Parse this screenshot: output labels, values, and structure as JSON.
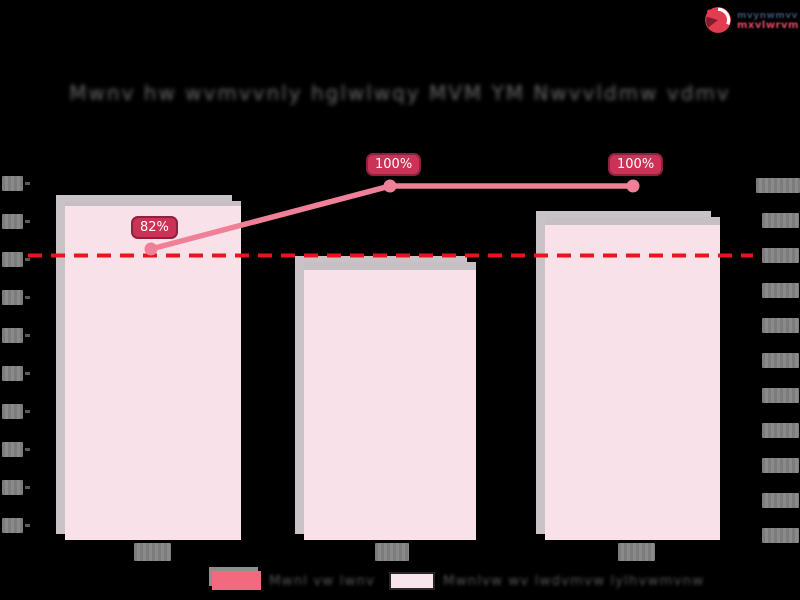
{
  "brand_logo": {
    "icon": "pie-circle-logo-icon",
    "redacted": true,
    "line1_placeholder": "mvynwmvv",
    "line2_placeholder": "mxvlwrvm"
  },
  "title": {
    "redacted": true,
    "placeholder": "Mwnv hw wvmvvnly hglwlwqy MVM YM Nwvvldmw vdmv"
  },
  "legend": {
    "redacted": true,
    "item1_placeholder": "Mwnl vw lwnv",
    "item2_placeholder": "Mwnlvw wv lwdvmvw lylhvwmvnw"
  },
  "chart_data": {
    "type": "combo_bar_line",
    "title": "[illegible - pixelated]",
    "categories": [
      "[illegible]",
      "[illegible]",
      "[illegible]"
    ],
    "series": [
      {
        "name": "[illegible legend 1]",
        "type": "line",
        "axis": "right",
        "unit": "%",
        "values": [
          82,
          100,
          100
        ]
      },
      {
        "name": "[illegible legend 2]",
        "type": "bar",
        "axis": "right",
        "unit": "%",
        "values_estimated": [
          96,
          78,
          91
        ]
      }
    ],
    "point_labels": [
      "82%",
      "100%",
      "100%"
    ],
    "target_line": {
      "value": 80,
      "style": "dashed",
      "color": "#e8151d"
    },
    "right_axis": {
      "min": 0,
      "max": 100,
      "tick_step": 10,
      "tick_count": 11,
      "labels_illegible": true
    },
    "left_axis": {
      "tick_count": 10,
      "labels_illegible": true
    },
    "x_axis": {
      "tick_count": 3,
      "labels_illegible": true
    },
    "legend_position": "bottom",
    "grid": false
  },
  "colors": {
    "background": "#000000",
    "bar_fill": "#f8e1e9",
    "bar_edge_gray": "#c6c0c4",
    "line": "#ef8098",
    "marker": "#ef8098",
    "target_dashed": "#e8151d",
    "pill_bg": "#ca3356",
    "pill_border": "#8e2140",
    "pill_text": "#ffffff",
    "tick_box_gray": "#828282",
    "legend_swatch_1": "#f3697f",
    "legend_swatch_2": "#f8e4ea",
    "logo_red": "#e23c50"
  }
}
